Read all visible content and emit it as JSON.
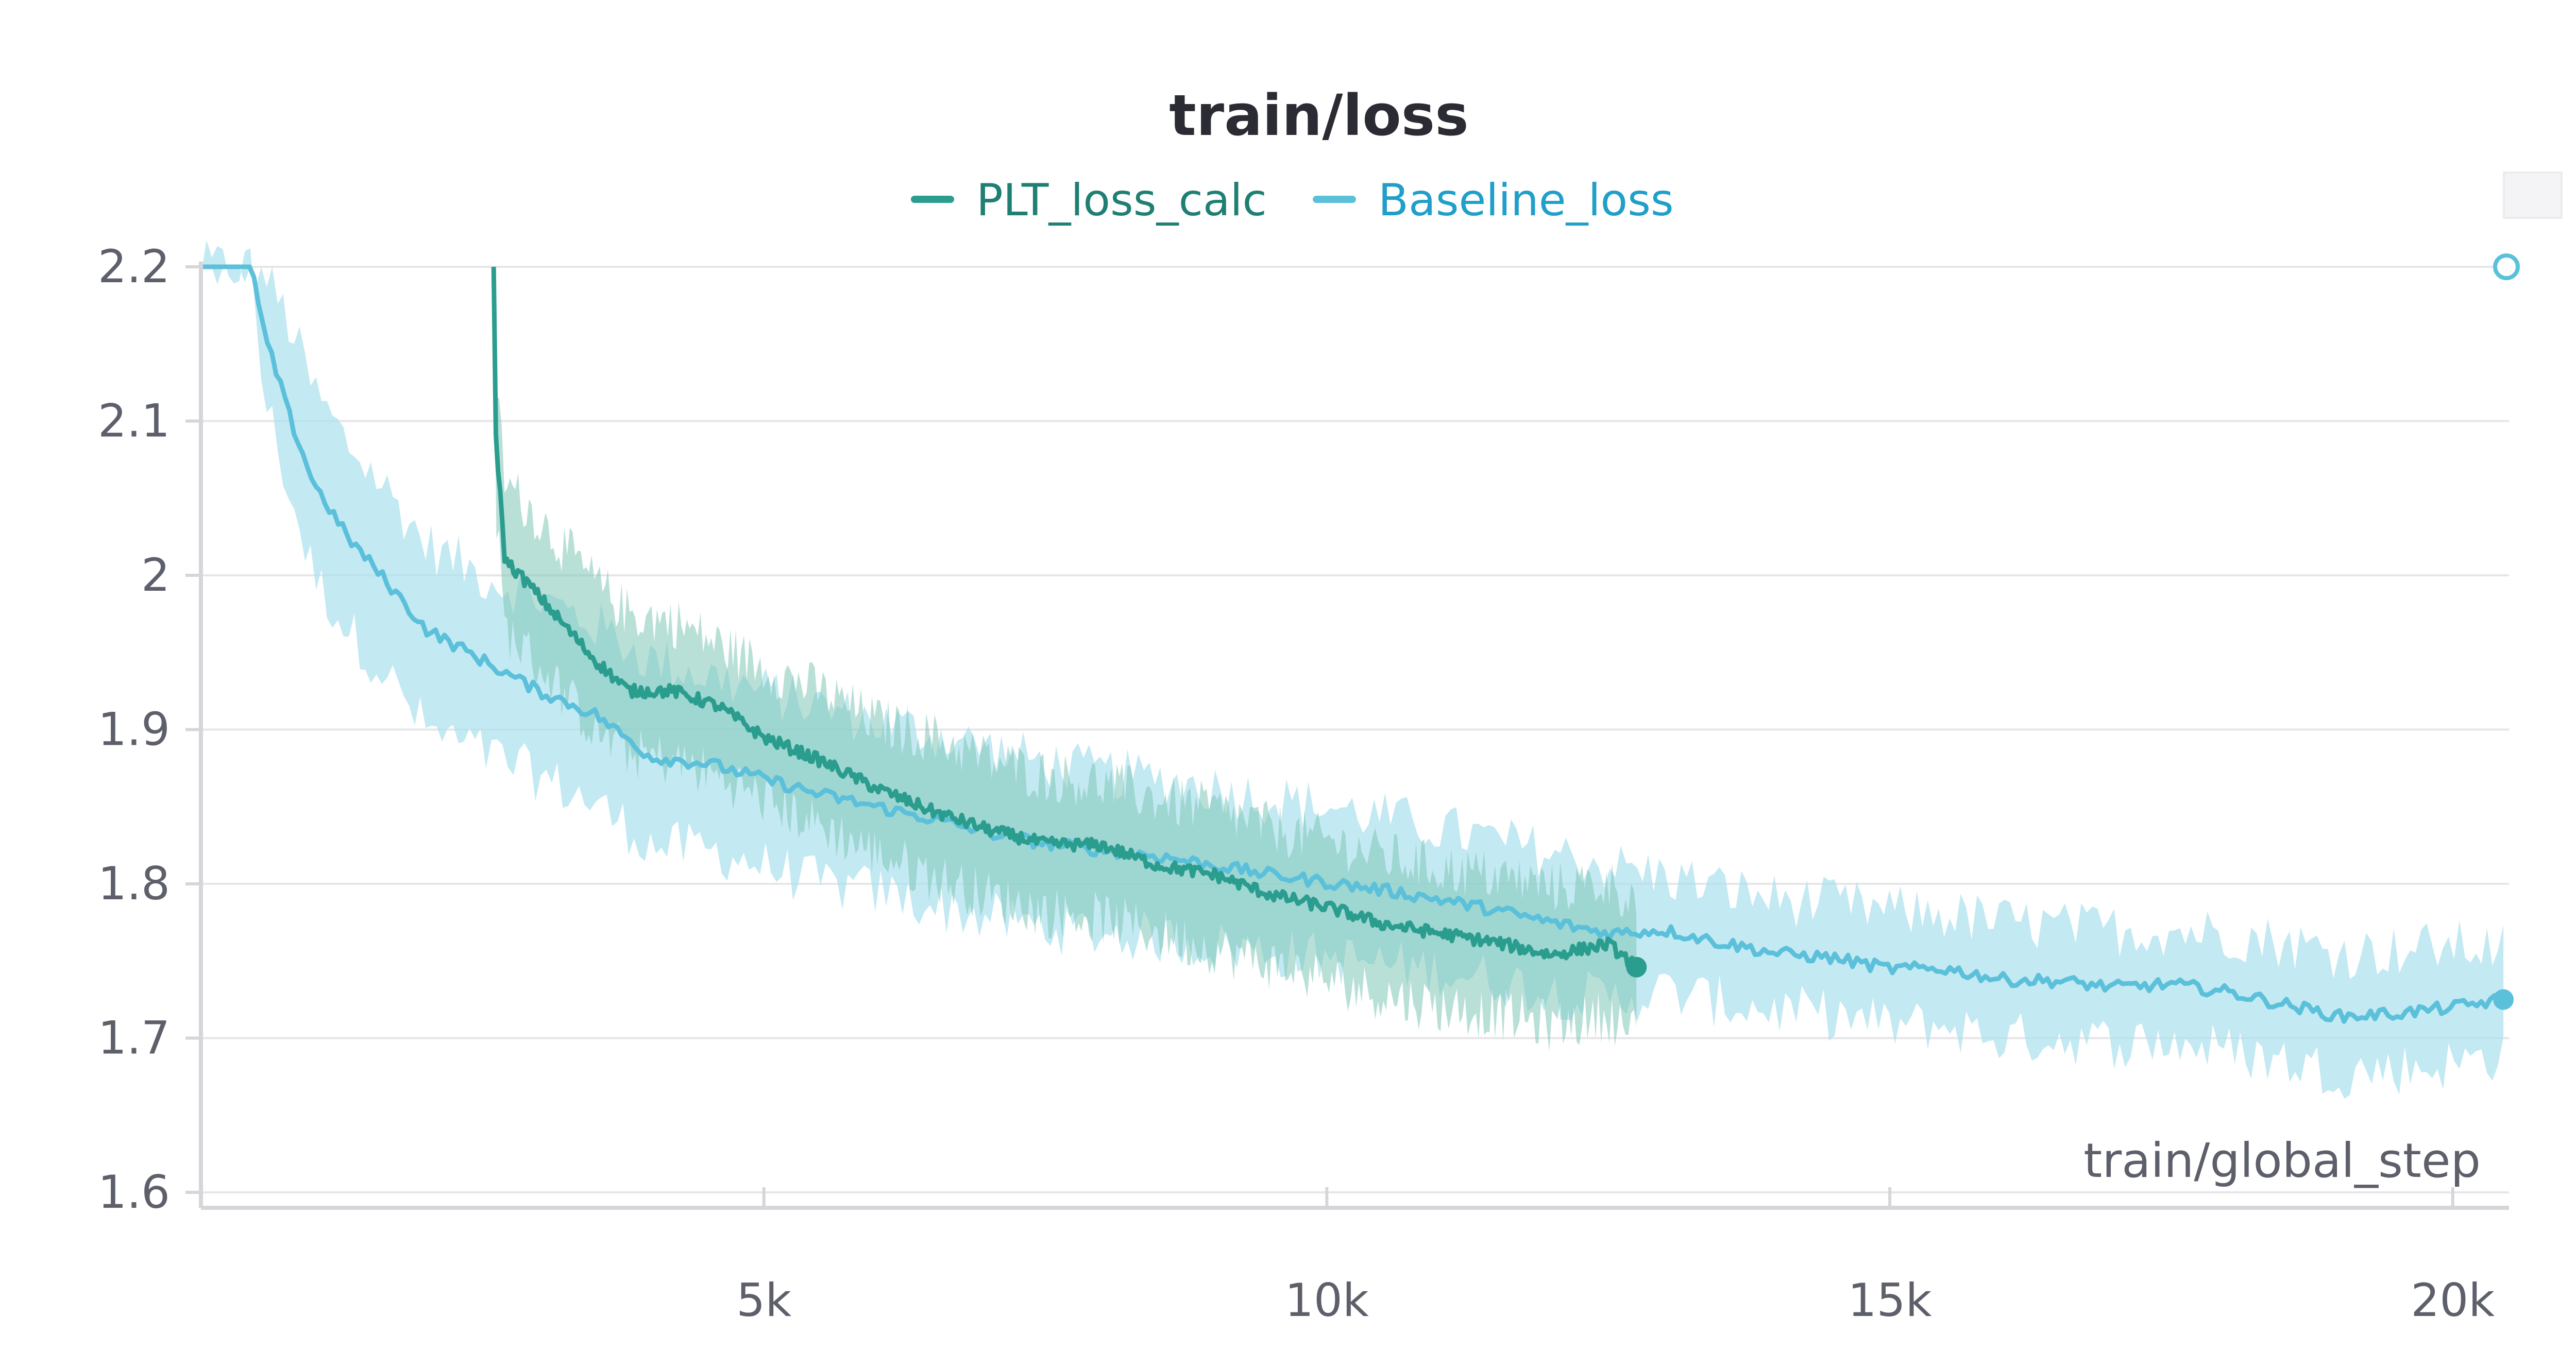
{
  "chart_data": {
    "type": "line",
    "title": "train/loss",
    "xlabel": "train/global_step",
    "ylabel": "",
    "xlim": [
      0,
      20500
    ],
    "ylim": [
      1.59,
      2.2
    ],
    "x_ticks": [
      5000,
      10000,
      15000,
      20000
    ],
    "x_tick_labels": [
      "5k",
      "10k",
      "15k",
      "20k"
    ],
    "y_ticks": [
      1.6,
      1.7,
      1.8,
      1.9,
      2.0,
      2.1,
      2.2
    ],
    "y_tick_labels": [
      "1.6",
      "1.7",
      "1.8",
      "1.9",
      "2",
      "2.1",
      "2.2"
    ],
    "grid": true,
    "legend_position": "top-center",
    "series": [
      {
        "name": "PLT_loss_calc",
        "color": "#2a9d8f",
        "band_color": "#7fc7b6",
        "legend_text_color": "#1e7f72",
        "x": [
          2600,
          2620,
          2700,
          2900,
          3200,
          3500,
          3800,
          4200,
          4600,
          5000,
          5500,
          6000,
          6500,
          7000,
          7500,
          8000,
          8500,
          9000,
          9500,
          10000,
          10500,
          11000,
          11500,
          12000,
          12500,
          12750
        ],
        "y": [
          2.2,
          2.09,
          2.01,
          1.995,
          1.97,
          1.945,
          1.925,
          1.925,
          1.915,
          1.895,
          1.88,
          1.862,
          1.847,
          1.835,
          1.826,
          1.825,
          1.812,
          1.806,
          1.793,
          1.785,
          1.774,
          1.768,
          1.762,
          1.754,
          1.761,
          1.746
        ],
        "band_upper": [
          2.2,
          2.13,
          2.06,
          2.045,
          2.02,
          1.995,
          1.975,
          1.97,
          1.955,
          1.94,
          1.925,
          1.905,
          1.895,
          1.88,
          1.87,
          1.865,
          1.855,
          1.848,
          1.836,
          1.828,
          1.818,
          1.81,
          1.805,
          1.798,
          1.8,
          1.79
        ],
        "band_lower": [
          2.2,
          2.04,
          1.965,
          1.95,
          1.925,
          1.9,
          1.885,
          1.88,
          1.87,
          1.855,
          1.838,
          1.82,
          1.805,
          1.792,
          1.782,
          1.778,
          1.768,
          1.758,
          1.748,
          1.738,
          1.728,
          1.72,
          1.716,
          1.708,
          1.715,
          1.702
        ]
      },
      {
        "name": "Baseline_loss",
        "color": "#5bc0da",
        "band_color": "#a9e0ec",
        "legend_text_color": "#1f9fc9",
        "x": [
          0,
          450,
          550,
          800,
          1000,
          1300,
          1600,
          2000,
          2500,
          3000,
          3500,
          4000,
          4500,
          5000,
          5500,
          6000,
          6500,
          7000,
          7500,
          8000,
          8500,
          9000,
          9500,
          10000,
          10500,
          11000,
          11500,
          12000,
          12500,
          13000,
          13500,
          14000,
          14500,
          15000,
          15500,
          16000,
          16500,
          17000,
          17500,
          18000,
          18500,
          19000,
          19500,
          20000,
          20450
        ],
        "y": [
          2.2,
          2.2,
          2.16,
          2.1,
          2.06,
          2.025,
          2.0,
          1.965,
          1.945,
          1.925,
          1.91,
          1.882,
          1.878,
          1.868,
          1.858,
          1.85,
          1.842,
          1.833,
          1.826,
          1.822,
          1.818,
          1.812,
          1.806,
          1.801,
          1.796,
          1.79,
          1.783,
          1.775,
          1.768,
          1.77,
          1.762,
          1.755,
          1.752,
          1.745,
          1.745,
          1.738,
          1.737,
          1.733,
          1.735,
          1.73,
          1.722,
          1.714,
          1.716,
          1.72,
          1.725
        ],
        "band_upper": [
          2.2,
          2.2,
          2.2,
          2.16,
          2.12,
          2.085,
          2.06,
          2.02,
          2.0,
          1.985,
          1.968,
          1.945,
          1.935,
          1.925,
          1.915,
          1.905,
          1.897,
          1.888,
          1.878,
          1.872,
          1.868,
          1.862,
          1.855,
          1.85,
          1.843,
          1.836,
          1.828,
          1.82,
          1.812,
          1.805,
          1.797,
          1.79,
          1.787,
          1.782,
          1.78,
          1.775,
          1.772,
          1.77,
          1.77,
          1.768,
          1.762,
          1.755,
          1.757,
          1.76,
          1.758
        ],
        "band_lower": [
          2.2,
          2.2,
          2.12,
          2.05,
          2.0,
          1.965,
          1.94,
          1.9,
          1.885,
          1.87,
          1.852,
          1.825,
          1.822,
          1.812,
          1.8,
          1.795,
          1.786,
          1.778,
          1.772,
          1.768,
          1.765,
          1.76,
          1.756,
          1.752,
          1.748,
          1.744,
          1.738,
          1.73,
          1.725,
          1.73,
          1.723,
          1.718,
          1.715,
          1.708,
          1.708,
          1.7,
          1.7,
          1.697,
          1.698,
          1.692,
          1.685,
          1.678,
          1.68,
          1.683,
          1.69
        ]
      }
    ]
  },
  "legend": {
    "items": [
      {
        "label": "PLT_loss_calc",
        "color": "#2a9d8f",
        "text_color": "#1e7f72"
      },
      {
        "label": "Baseline_loss",
        "color": "#5bc0da",
        "text_color": "#1f9fc9"
      }
    ]
  },
  "colors": {
    "grid": "#e6e6e9",
    "axis": "#d6d6da",
    "text": "#5d5f6a",
    "title": "#2b2b33"
  }
}
